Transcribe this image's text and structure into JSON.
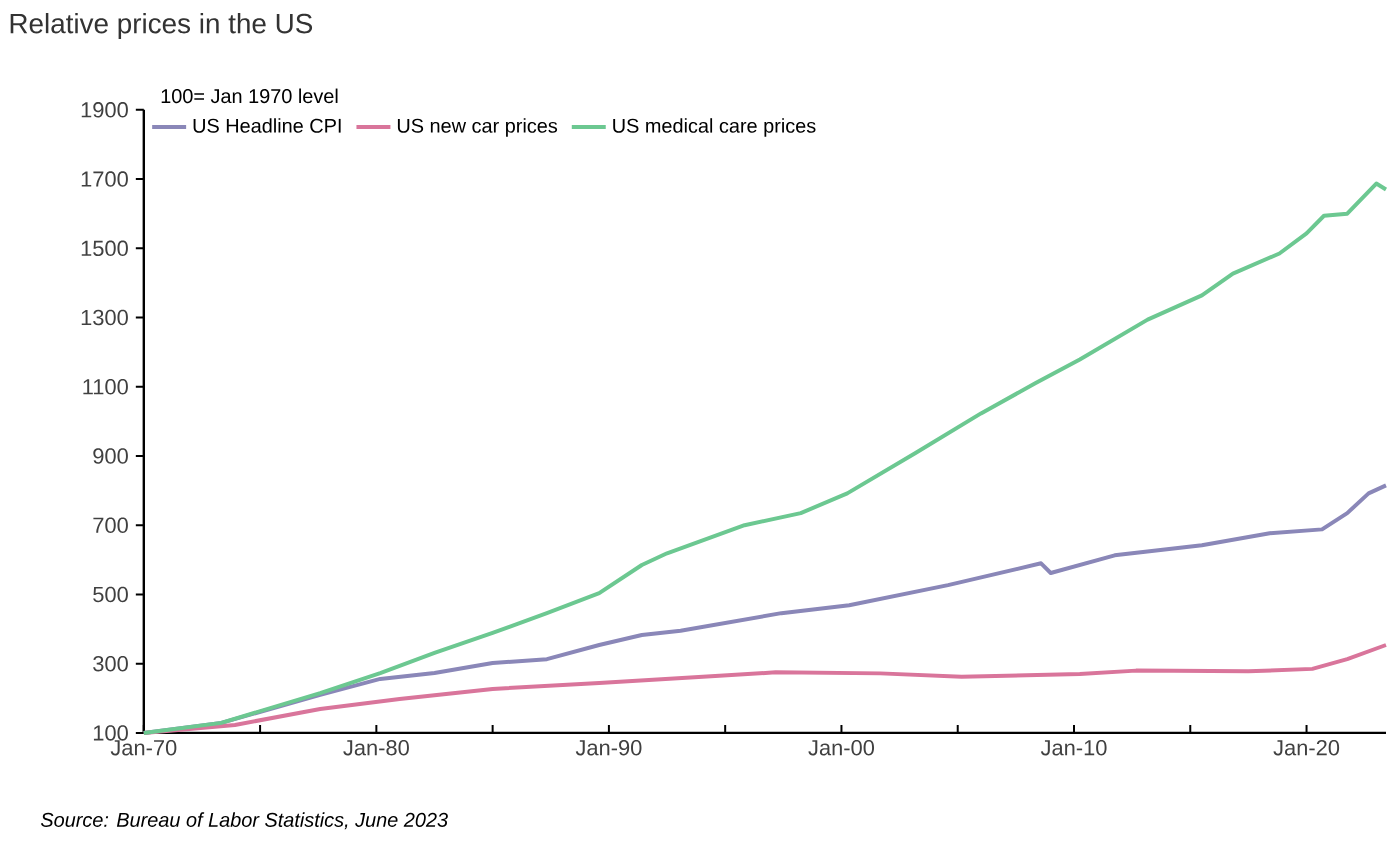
{
  "chart_data": {
    "type": "line",
    "title": "Relative prices in the US",
    "subtitle": "100= Jan 1970 level",
    "annotations": [
      "Source: Bureau of Labor Statistics, June 2023"
    ],
    "xlim": [
      "1970-01",
      "2023-06"
    ],
    "xticks": [
      {
        "value": "1970-01",
        "label": "Jan-70"
      },
      {
        "value": "1975-01",
        "label": null
      },
      {
        "value": "1980-01",
        "label": "Jan-80"
      },
      {
        "value": "1985-01",
        "label": null
      },
      {
        "value": "1990-01",
        "label": "Jan-90"
      },
      {
        "value": "1995-01",
        "label": null
      },
      {
        "value": "2000-01",
        "label": "Jan-00"
      },
      {
        "value": "2005-01",
        "label": null
      },
      {
        "value": "2010-01",
        "label": "Jan-10"
      },
      {
        "value": "2015-01",
        "label": null
      },
      {
        "value": "2020-01",
        "label": "Jan-20"
      }
    ],
    "ylim": [
      100,
      1900
    ],
    "yticks": [
      100,
      300,
      500,
      700,
      900,
      1100,
      1300,
      1500,
      1700,
      1900
    ],
    "grid": false,
    "legend": "top",
    "line_style": "solid",
    "series": [
      {
        "name": "US Headline CPI",
        "color": "#8a87b8",
        "x": [
          "1970-01",
          "1973-05",
          "1977-08",
          "1980-03",
          "1982-07",
          "1985-01",
          "1987-05",
          "1989-08",
          "1991-06",
          "1993-02",
          "1997-06",
          "2000-05",
          "2004-08",
          "2008-08",
          "2009-01",
          "2011-10",
          "2015-07",
          "2018-06",
          "2020-09",
          "2021-10",
          "2022-09",
          "2023-06"
        ],
        "values": [
          100,
          129,
          210,
          256,
          273,
          302,
          313,
          354,
          383,
          395,
          446,
          469,
          527,
          590,
          562,
          613,
          642,
          677,
          688,
          735,
          792,
          815
        ]
      },
      {
        "name": "US new car prices",
        "color": "#d9759b",
        "x": [
          "1970-01",
          "1973-12",
          "1977-08",
          "1981-01",
          "1985-01",
          "1989-08",
          "1994-10",
          "1997-03",
          "2001-09",
          "2005-03",
          "2010-04",
          "2012-09",
          "2017-07",
          "2020-04",
          "2021-10",
          "2023-06"
        ],
        "values": [
          100,
          123,
          169,
          198,
          227,
          244,
          265,
          275,
          272,
          262,
          270,
          280,
          278,
          285,
          313,
          354
        ]
      },
      {
        "name": "US medical care prices",
        "color": "#6cc891",
        "x": [
          "1970-01",
          "1973-05",
          "1977-08",
          "1980-03",
          "1982-07",
          "1985-01",
          "1987-05",
          "1989-08",
          "1991-06",
          "1992-07",
          "1995-11",
          "1998-04",
          "2000-04",
          "2003-03",
          "2006-01",
          "2008-05",
          "2010-04",
          "2013-03",
          "2015-07",
          "2016-11",
          "2018-11",
          "2020-01",
          "2020-10",
          "2021-10",
          "2023-01",
          "2023-06"
        ],
        "values": [
          100,
          129,
          215,
          273,
          331,
          389,
          446,
          504,
          585,
          619,
          700,
          735,
          792,
          908,
          1023,
          1110,
          1179,
          1294,
          1364,
          1427,
          1485,
          1543,
          1594,
          1600,
          1687,
          1670
        ]
      }
    ]
  }
}
